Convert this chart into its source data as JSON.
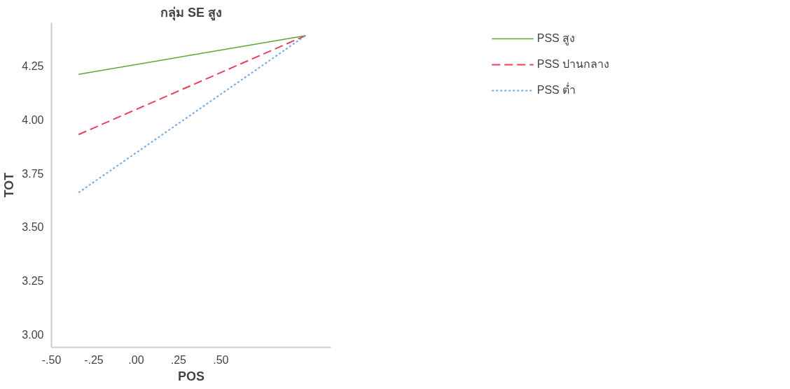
{
  "chart_data": {
    "type": "line",
    "title": "กลุ่ม SE สูง",
    "xlabel": "POS",
    "ylabel": "TOT",
    "x": [
      -0.34,
      1.0
    ],
    "series": [
      {
        "name": "PSS สูง",
        "color": "#5aa832",
        "values": [
          4.21,
          4.39
        ],
        "line_style": "solid"
      },
      {
        "name": "PSS ปานกลาง",
        "color": "#e8425a",
        "values": [
          3.93,
          4.39
        ],
        "line_style": "dashed"
      },
      {
        "name": "PSS ต่ำ",
        "color": "#6fa8e8",
        "values": [
          3.66,
          4.39
        ],
        "line_style": "dotted"
      }
    ],
    "xlim": [
      -0.5,
      1.15
    ],
    "ylim": [
      2.94,
      4.45
    ],
    "xticks": [
      {
        "value": -0.5,
        "label": "-.50"
      },
      {
        "value": -0.25,
        "label": "-.25"
      },
      {
        "value": 0,
        "label": ".00"
      },
      {
        "value": 0.25,
        "label": ".25"
      },
      {
        "value": 0.5,
        "label": ".50"
      }
    ],
    "yticks": [
      {
        "value": 3.0,
        "label": "3.00"
      },
      {
        "value": 3.25,
        "label": "3.25"
      },
      {
        "value": 3.5,
        "label": "3.50"
      },
      {
        "value": 3.75,
        "label": "3.75"
      },
      {
        "value": 4.0,
        "label": "4.00"
      },
      {
        "value": 4.25,
        "label": "4.25"
      }
    ],
    "legend": "right",
    "grid": false
  }
}
